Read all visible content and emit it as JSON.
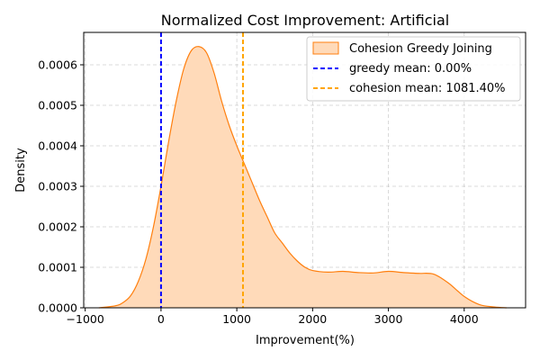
{
  "chart_data": {
    "type": "area",
    "title": "Normalized Cost Improvement: Artificial",
    "xlabel": "Improvement(%)",
    "ylabel": "Density",
    "xlim": [
      -1020,
      4810
    ],
    "ylim": [
      0,
      0.00068
    ],
    "x_ticks": [
      -1000,
      0,
      1000,
      2000,
      3000,
      4000
    ],
    "x_tick_labels": [
      "−1000",
      "0",
      "1000",
      "2000",
      "3000",
      "4000"
    ],
    "y_ticks": [
      0,
      0.0001,
      0.0002,
      0.0003,
      0.0004,
      0.0005,
      0.0006
    ],
    "y_tick_labels": [
      "0.0000",
      "0.0001",
      "0.0002",
      "0.0003",
      "0.0004",
      "0.0005",
      "0.0006"
    ],
    "grid": true,
    "legend_position": "top-right",
    "series": [
      {
        "name": "Cohesion Greedy Joining",
        "kind": "kde",
        "color": "#ff7f0e",
        "fill": "#ffdab9",
        "x": [
          -820,
          -600,
          -500,
          -400,
          -300,
          -200,
          -100,
          0,
          100,
          200,
          300,
          400,
          500,
          600,
          700,
          800,
          900,
          1000,
          1100,
          1200,
          1300,
          1400,
          1500,
          1600,
          1700,
          1800,
          1900,
          2000,
          2200,
          2400,
          2600,
          2800,
          3000,
          3200,
          3400,
          3600,
          3800,
          4000,
          4200,
          4400,
          4560
        ],
        "y": [
          0,
          5e-06,
          1.3e-05,
          3e-05,
          6.5e-05,
          0.00012,
          0.0002,
          0.0003,
          0.00041,
          0.00051,
          0.00059,
          0.000635,
          0.000645,
          0.00063,
          0.00058,
          0.00051,
          0.00045,
          0.0004,
          0.000355,
          0.00031,
          0.000265,
          0.000225,
          0.000185,
          0.00016,
          0.000135,
          0.000115,
          0.0001,
          9.2e-05,
          8.8e-05,
          9e-05,
          8.7e-05,
          8.6e-05,
          9e-05,
          8.7e-05,
          8.5e-05,
          8.3e-05,
          6e-05,
          2.8e-05,
          8e-06,
          2e-06,
          0
        ]
      }
    ],
    "reference_lines": [
      {
        "name": "greedy mean: 0.00%",
        "x": 0,
        "color": "#0000ff",
        "style": "dashed"
      },
      {
        "name": "cohesion mean: 1081.40%",
        "x": 1081.4,
        "color": "#ffa500",
        "style": "dashed"
      }
    ]
  }
}
